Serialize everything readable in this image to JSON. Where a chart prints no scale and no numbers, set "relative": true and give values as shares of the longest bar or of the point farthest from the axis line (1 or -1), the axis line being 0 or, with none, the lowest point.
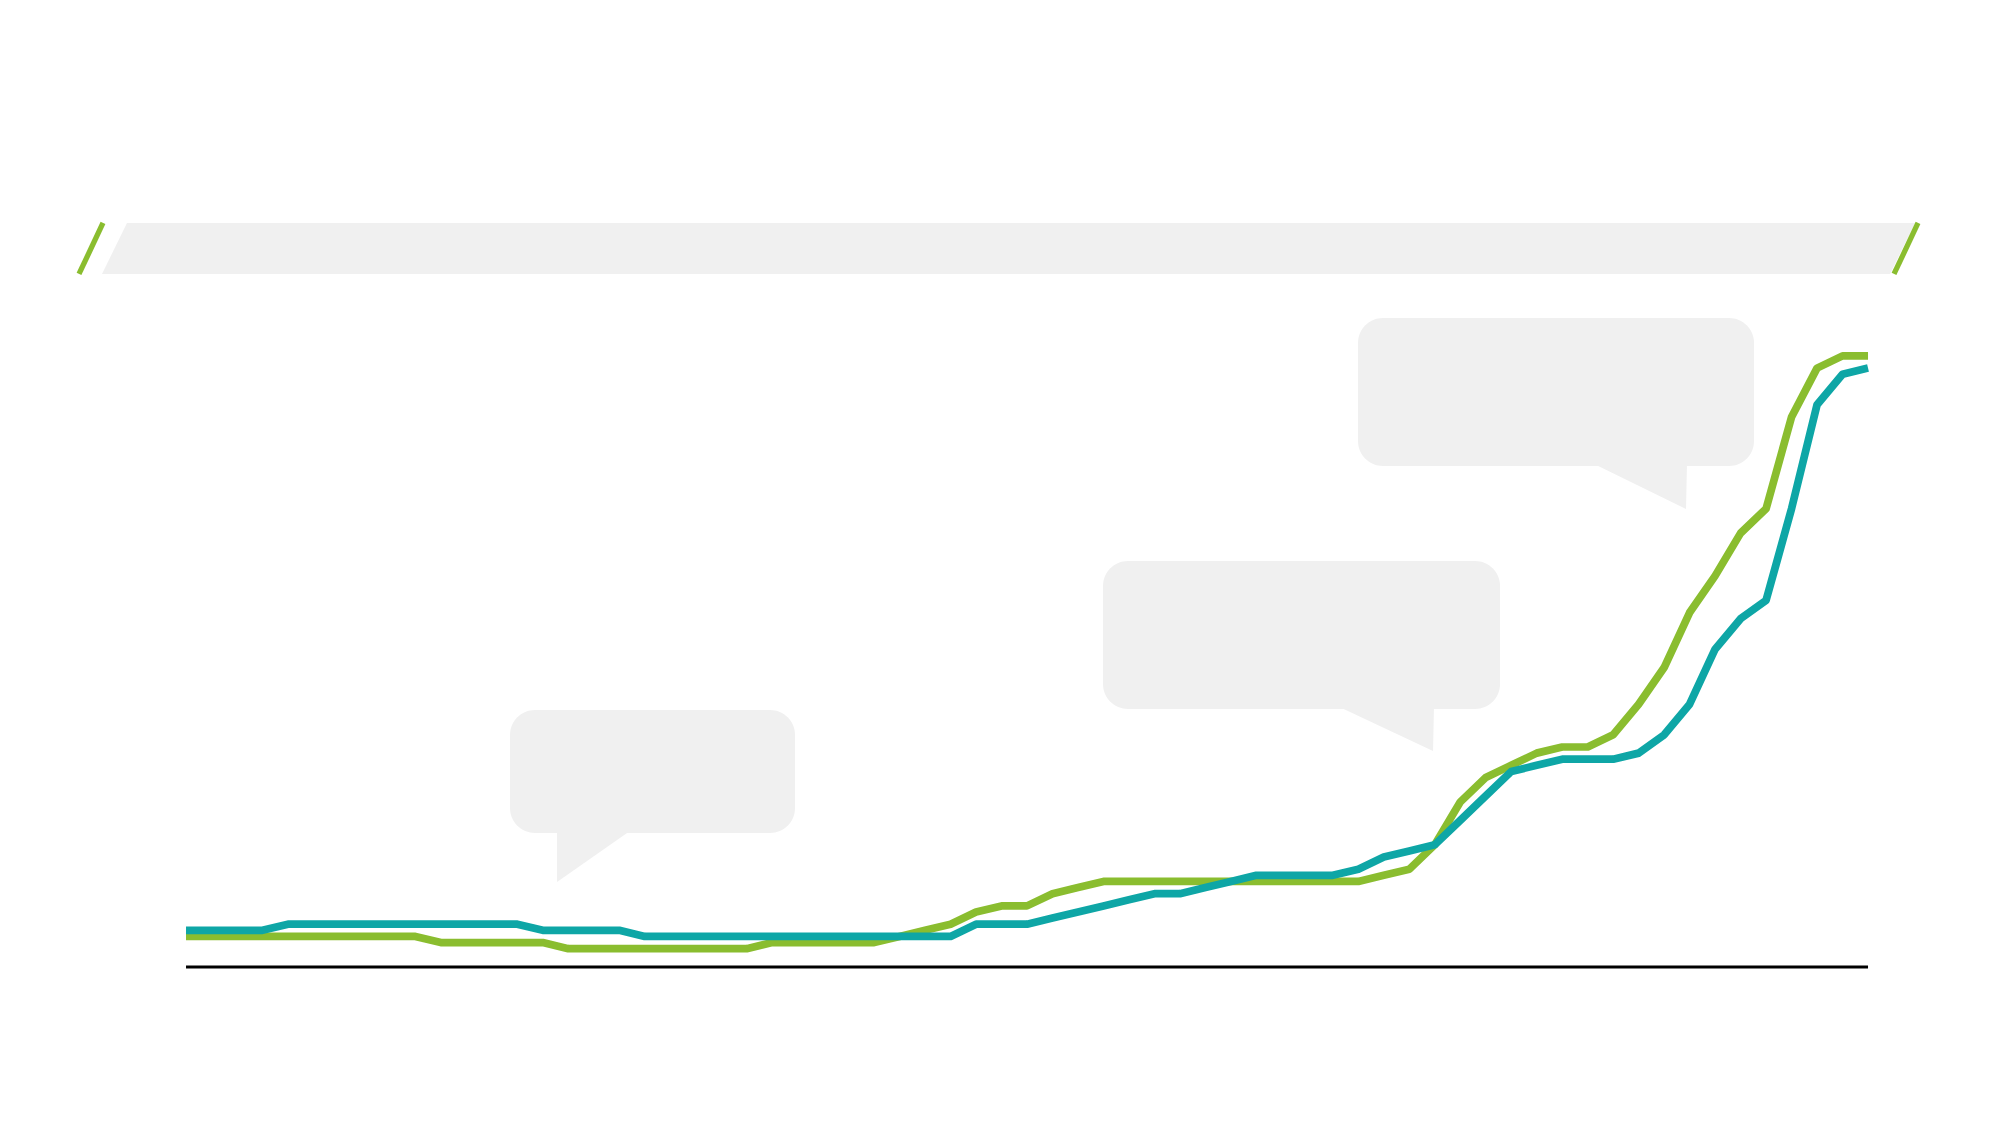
{
  "chart_data": {
    "type": "line",
    "relative": true,
    "line_style": "solid",
    "categories": [
      null,
      null,
      null,
      null,
      null,
      null,
      null,
      null,
      null,
      null,
      null,
      null,
      null,
      null,
      null,
      null,
      null,
      null,
      null,
      null,
      null,
      null,
      null,
      null,
      null,
      null,
      null,
      null,
      null,
      null,
      null,
      null,
      null,
      null,
      null,
      null,
      null,
      null,
      null,
      null,
      null,
      null,
      null,
      null,
      null,
      null,
      null,
      null,
      null,
      null,
      null,
      null,
      null,
      null,
      null,
      null,
      null,
      null,
      null,
      null,
      null,
      null,
      null,
      null,
      null,
      null,
      null
    ],
    "series": [
      {
        "color": "#8abd2f",
        "values": [
          0.05,
          0.05,
          0.05,
          0.05,
          0.05,
          0.05,
          0.05,
          0.05,
          0.05,
          0.05,
          0.04,
          0.04,
          0.04,
          0.04,
          0.04,
          0.03,
          0.03,
          0.03,
          0.03,
          0.03,
          0.03,
          0.03,
          0.03,
          0.04,
          0.04,
          0.04,
          0.04,
          0.04,
          0.05,
          0.06,
          0.07,
          0.09,
          0.1,
          0.1,
          0.12,
          0.13,
          0.14,
          0.14,
          0.14,
          0.14,
          0.14,
          0.14,
          0.14,
          0.14,
          0.14,
          0.14,
          0.14,
          0.15,
          0.16,
          0.2,
          0.27,
          0.31,
          0.33,
          0.35,
          0.36,
          0.36,
          0.38,
          0.43,
          0.49,
          0.58,
          0.64,
          0.71,
          0.75,
          0.9,
          0.98,
          1.0,
          1.0
        ]
      },
      {
        "color": "#0ea6a6",
        "values": [
          0.06,
          0.06,
          0.06,
          0.06,
          0.07,
          0.07,
          0.07,
          0.07,
          0.07,
          0.07,
          0.07,
          0.07,
          0.07,
          0.07,
          0.06,
          0.06,
          0.06,
          0.06,
          0.05,
          0.05,
          0.05,
          0.05,
          0.05,
          0.05,
          0.05,
          0.05,
          0.05,
          0.05,
          0.05,
          0.05,
          0.05,
          0.07,
          0.07,
          0.07,
          0.08,
          0.09,
          0.1,
          0.11,
          0.12,
          0.12,
          0.13,
          0.14,
          0.15,
          0.15,
          0.15,
          0.15,
          0.16,
          0.18,
          0.19,
          0.2,
          0.24,
          0.28,
          0.32,
          0.33,
          0.34,
          0.34,
          0.34,
          0.35,
          0.38,
          0.43,
          0.52,
          0.57,
          0.6,
          0.75,
          0.92,
          0.97,
          0.98
        ]
      }
    ]
  }
}
